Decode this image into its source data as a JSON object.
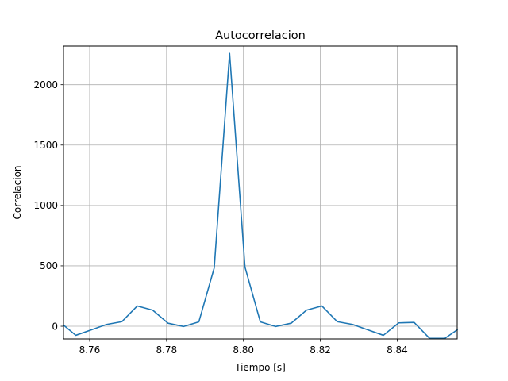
{
  "chart_data": {
    "type": "line",
    "title": "Autocorrelacion",
    "xlabel": "Tiempo [s]",
    "ylabel": "Correlacion",
    "xlim": [
      8.7532,
      8.8556
    ],
    "ylim": [
      -105,
      2320
    ],
    "grid": true,
    "xticks": [
      8.76,
      8.78,
      8.8,
      8.82,
      8.84
    ],
    "xtick_labels": [
      "8.76",
      "8.78",
      "8.80",
      "8.82",
      "8.84"
    ],
    "yticks": [
      0,
      500,
      1000,
      1500,
      2000
    ],
    "ytick_labels": [
      "0",
      "500",
      "1000",
      "1500",
      "2000"
    ],
    "series": [
      {
        "color": "#1f77b4",
        "x": [
          8.7532,
          8.7564,
          8.7604,
          8.7644,
          8.7684,
          8.7724,
          8.7764,
          8.7804,
          8.7844,
          8.7884,
          8.7924,
          8.7964,
          8.8004,
          8.8044,
          8.8084,
          8.8124,
          8.8164,
          8.8204,
          8.8244,
          8.8284,
          8.8324,
          8.8364,
          8.8404,
          8.8444,
          8.8484,
          8.8524,
          8.8556
        ],
        "y": [
          10,
          -75,
          -30,
          15,
          38,
          168,
          133,
          25,
          -2,
          36,
          483,
          2260,
          490,
          36,
          -2,
          25,
          133,
          168,
          38,
          15,
          -30,
          -75,
          28,
          32,
          -100,
          -100,
          -30
        ]
      }
    ]
  }
}
